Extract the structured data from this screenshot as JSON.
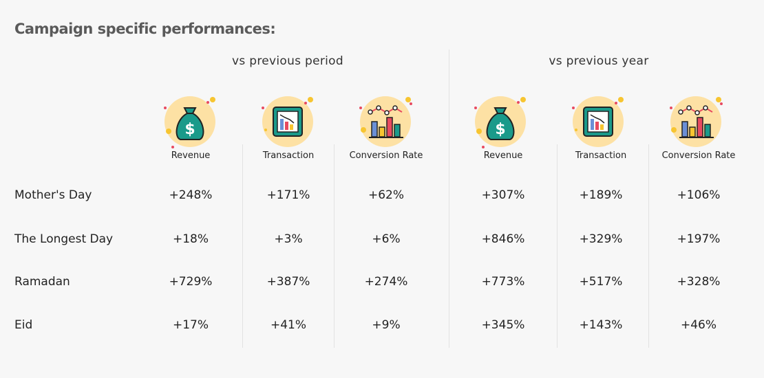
{
  "title": "Campaign specific performances:",
  "groups": [
    {
      "label": "vs previous period"
    },
    {
      "label": "vs previous year"
    }
  ],
  "metrics": [
    {
      "label": "Revenue",
      "icon": "money-bag-icon"
    },
    {
      "label": "Transaction",
      "icon": "transaction-chart-icon"
    },
    {
      "label": "Conversion Rate",
      "icon": "conversion-chart-icon"
    }
  ],
  "rows": [
    {
      "label": "Mother's Day",
      "values": [
        "+248%",
        "+171%",
        "+62%",
        "+307%",
        "+189%",
        "+106%"
      ]
    },
    {
      "label": "The Longest Day",
      "values": [
        "+18%",
        "+3%",
        "+6%",
        "+846%",
        "+329%",
        "+197%"
      ]
    },
    {
      "label": "Ramadan",
      "values": [
        "+729%",
        "+387%",
        "+274%",
        "+773%",
        "+517%",
        "+328%"
      ]
    },
    {
      "label": "Eid",
      "values": [
        "+17%",
        "+41%",
        "+9%",
        "+345%",
        "+143%",
        "+46%"
      ]
    }
  ],
  "colors": {
    "icon_circle": "#fde1a4",
    "money_bag": "#1a9a8a",
    "accent_red": "#e84a5f",
    "accent_yellow": "#f7c531",
    "bar_blue": "#6b8fd6"
  }
}
